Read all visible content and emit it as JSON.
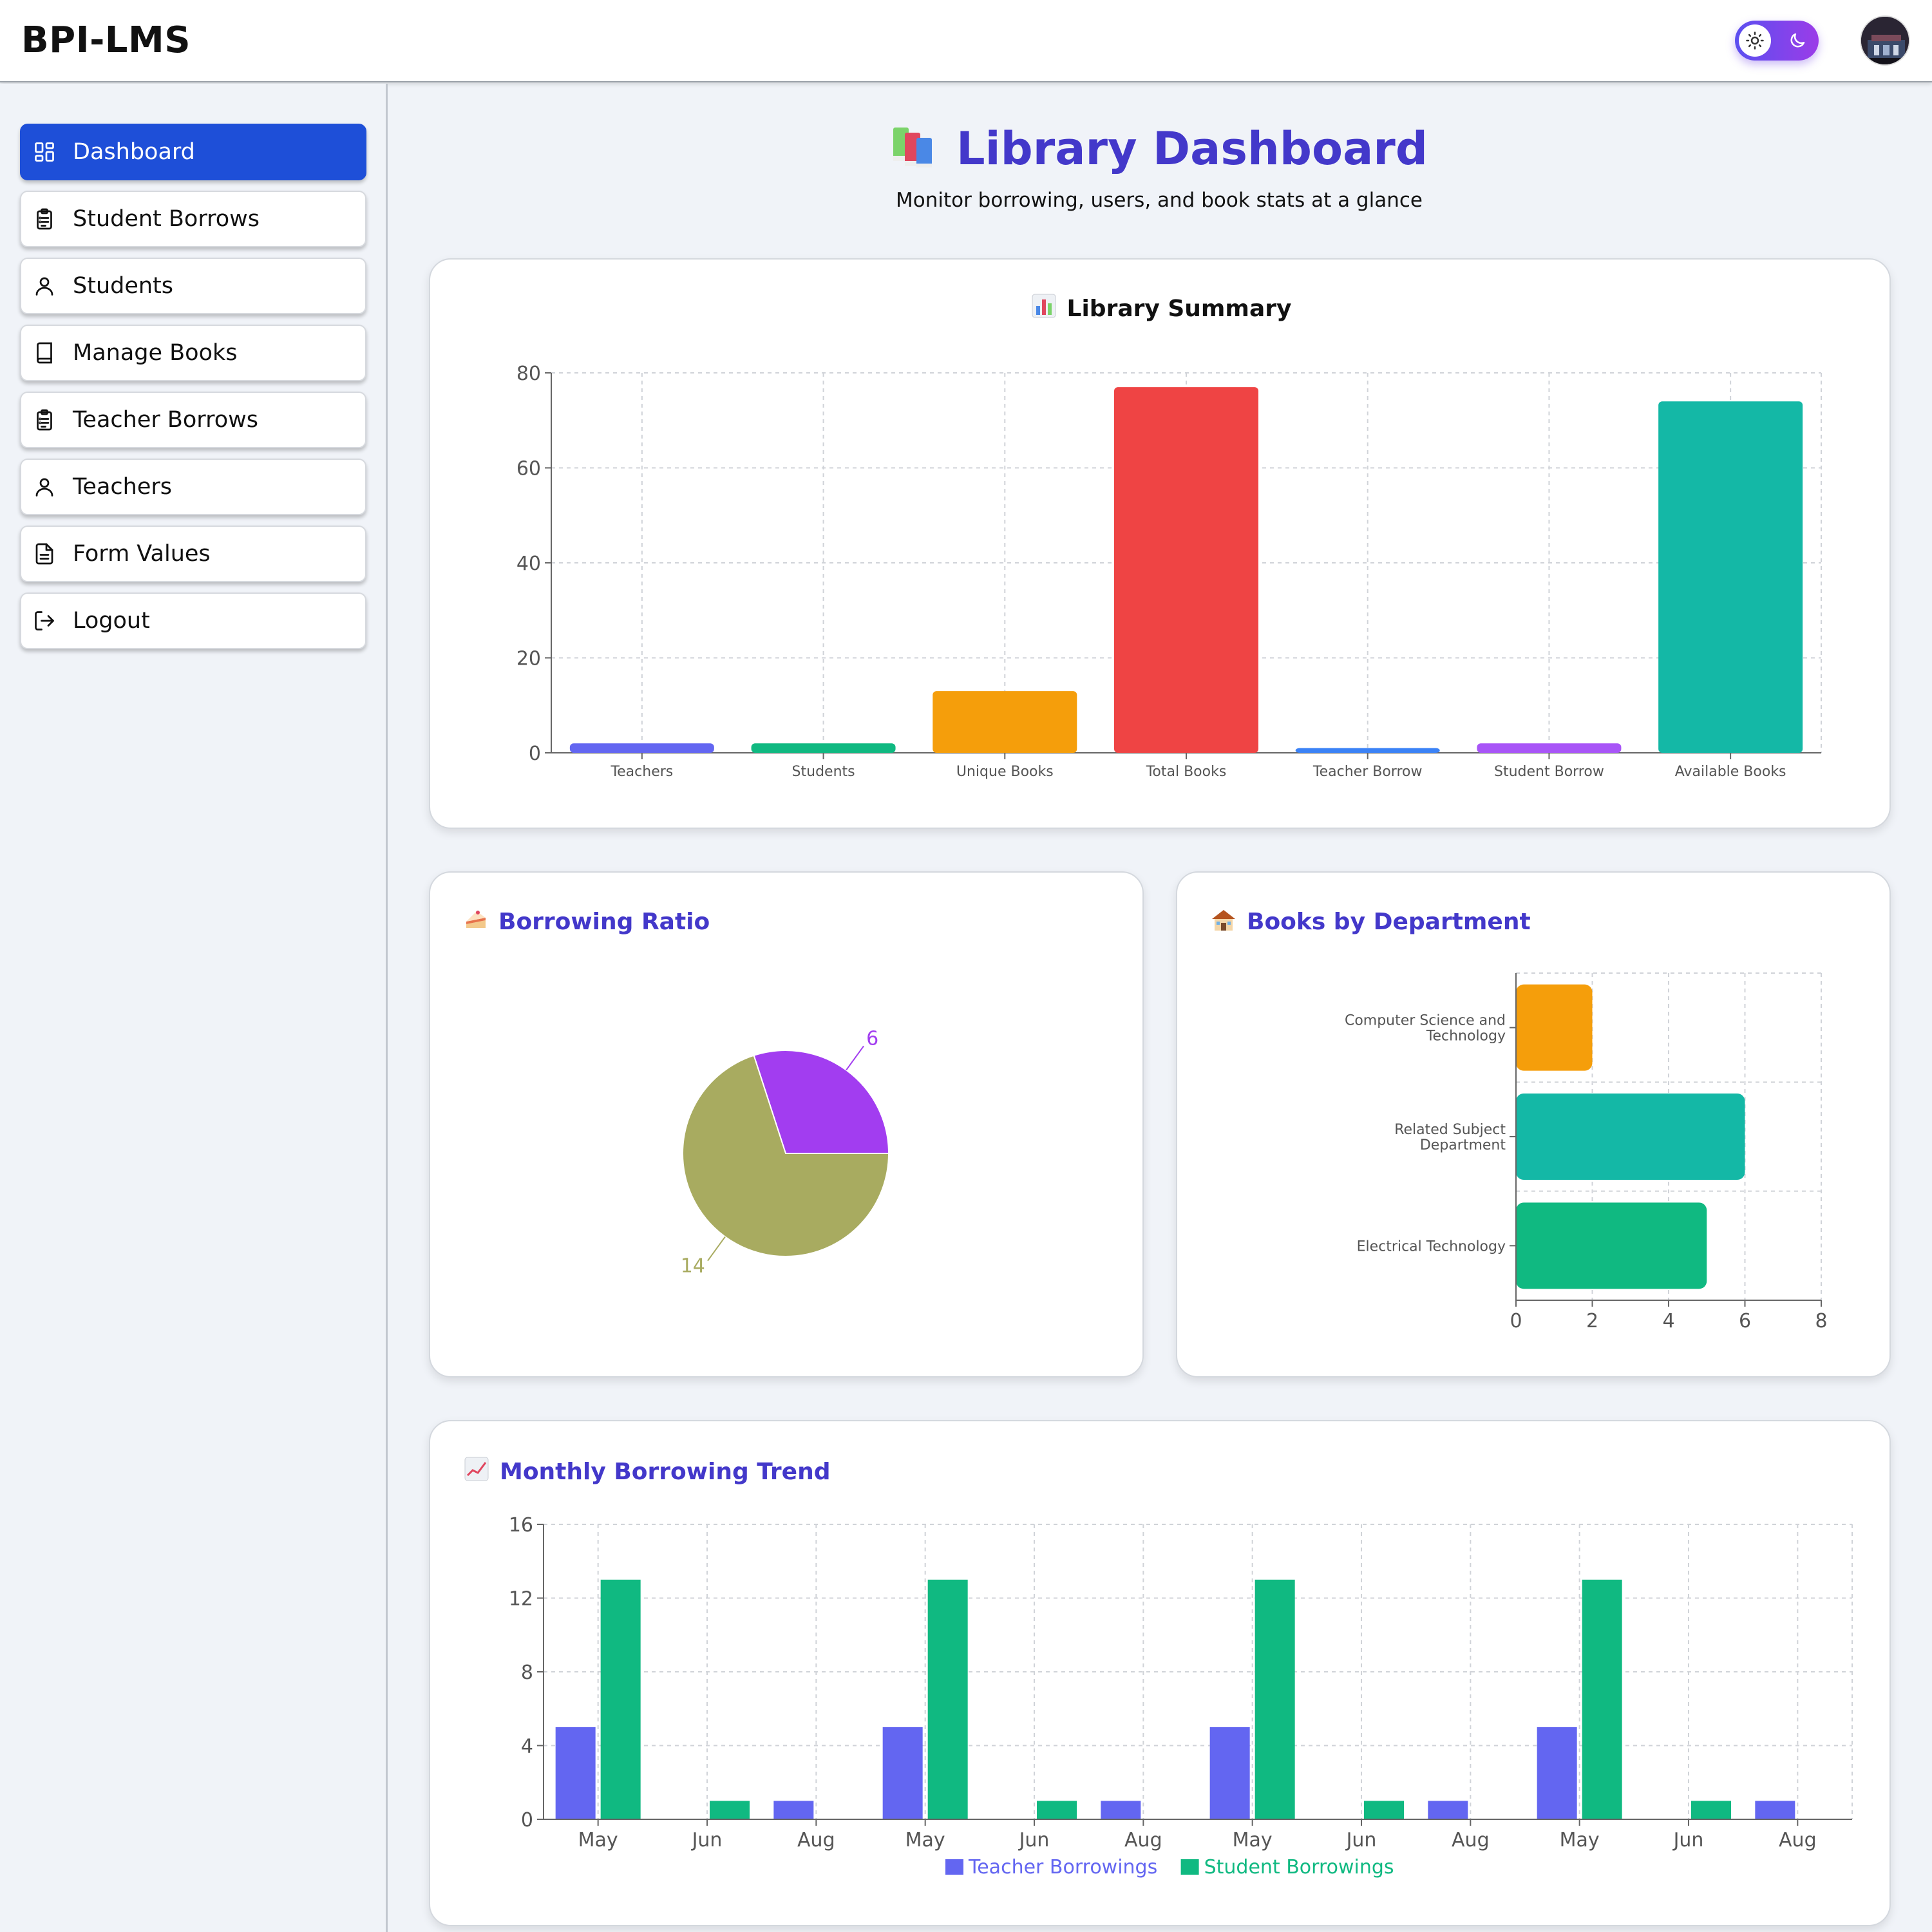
{
  "header": {
    "brand": "BPI-LMS",
    "toggle_name": "theme-toggle",
    "colors": {
      "toggle_start": "#5b4ff0",
      "toggle_end": "#9b3ce8"
    }
  },
  "sidebar": {
    "items": [
      {
        "label": "Dashboard",
        "icon": "grid-icon",
        "active": true
      },
      {
        "label": "Student Borrows",
        "icon": "clipboard-list-icon",
        "active": false
      },
      {
        "label": "Students",
        "icon": "user-icon",
        "active": false
      },
      {
        "label": "Manage Books",
        "icon": "book-icon",
        "active": false
      },
      {
        "label": "Teacher Borrows",
        "icon": "clipboard-list-icon",
        "active": false
      },
      {
        "label": "Teachers",
        "icon": "user-icon",
        "active": false
      },
      {
        "label": "Form Values",
        "icon": "document-icon",
        "active": false
      },
      {
        "label": "Logout",
        "icon": "logout-icon",
        "active": false
      }
    ]
  },
  "main": {
    "title": "Library Dashboard",
    "subtitle": "Monitor borrowing, users, and book stats at a glance",
    "cards": {
      "summary": "Library Summary",
      "ratio": "Borrowing Ratio",
      "dept": "Books by Department",
      "trend": "Monthly Borrowing Trend"
    }
  },
  "chart_data": [
    {
      "id": "summary",
      "type": "bar",
      "title": "Library Summary",
      "categories": [
        "Teachers",
        "Students",
        "Unique Books",
        "Total Books",
        "Teacher Borrow",
        "Student Borrow",
        "Available Books"
      ],
      "values": [
        2,
        2,
        13,
        77,
        1,
        2,
        74
      ],
      "colors": [
        "#6366f1",
        "#10b981",
        "#f59e0b",
        "#ef4444",
        "#3b82f6",
        "#a855f7",
        "#14b8a6"
      ],
      "ylim": [
        0,
        80
      ],
      "yticks": [
        0,
        20,
        40,
        60,
        80
      ],
      "grid": true
    },
    {
      "id": "ratio",
      "type": "pie",
      "title": "Borrowing Ratio",
      "values": [
        6,
        14
      ],
      "labels": [
        "6",
        "14"
      ],
      "colors": [
        "#a23df0",
        "#a8ab60"
      ]
    },
    {
      "id": "dept",
      "type": "bar",
      "orientation": "horizontal",
      "title": "Books by Department",
      "categories": [
        "Computer Science and Technology",
        "Related Subject Department",
        "Electrical Technology"
      ],
      "category_lines": [
        [
          "Computer Science and",
          "Technology"
        ],
        [
          "Related Subject",
          "Department"
        ],
        [
          "Electrical Technology"
        ]
      ],
      "values": [
        2,
        6,
        5
      ],
      "colors": [
        "#f59e0b",
        "#14b8a6",
        "#10b981"
      ],
      "xlim": [
        0,
        8
      ],
      "xticks": [
        0,
        2,
        4,
        6,
        8
      ],
      "grid": true
    },
    {
      "id": "trend",
      "type": "bar",
      "title": "Monthly Borrowing Trend",
      "categories": [
        "May",
        "Jun",
        "Aug",
        "May",
        "Jun",
        "Aug",
        "May",
        "Jun",
        "Aug",
        "May",
        "Jun",
        "Aug"
      ],
      "series": [
        {
          "name": "Teacher Borrowings",
          "values": [
            5,
            0,
            1,
            5,
            0,
            1,
            5,
            0,
            1,
            5,
            0,
            1
          ],
          "color": "#6366f1"
        },
        {
          "name": "Student Borrowings",
          "values": [
            13,
            1,
            0,
            13,
            1,
            0,
            13,
            1,
            0,
            13,
            1,
            0
          ],
          "color": "#10b981"
        }
      ],
      "ylim": [
        0,
        16
      ],
      "yticks": [
        0,
        4,
        8,
        12,
        16
      ],
      "legend": "bottom",
      "grid": true
    }
  ]
}
